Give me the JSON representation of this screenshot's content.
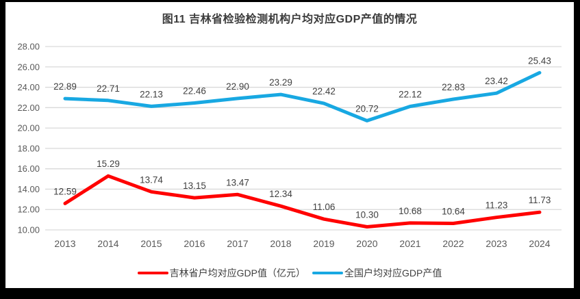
{
  "chart_data": {
    "type": "line",
    "title": "图11 吉林省检验检测机构户均对应GDP产值的情况",
    "categories": [
      "2013",
      "2014",
      "2015",
      "2016",
      "2017",
      "2018",
      "2019",
      "2020",
      "2021",
      "2022",
      "2023",
      "2024"
    ],
    "series": [
      {
        "name": "吉林省户均对应GDP值（亿元）",
        "color": "#ff0000",
        "values": [
          12.59,
          15.29,
          13.74,
          13.15,
          13.47,
          12.34,
          11.06,
          10.3,
          10.68,
          10.64,
          11.23,
          11.73
        ]
      },
      {
        "name": "全国户均对应GDP产值",
        "color": "#18a8e2",
        "values": [
          22.89,
          22.71,
          22.13,
          22.46,
          22.9,
          23.29,
          22.42,
          20.72,
          22.12,
          22.83,
          23.42,
          25.43
        ]
      }
    ],
    "ylim": [
      10,
      28
    ],
    "ytick_step": 2,
    "xlabel": "",
    "ylabel": "",
    "grid": "horizontal",
    "legend_position": "bottom",
    "data_labels": true,
    "colors": {
      "gridline": "#d9d9d9",
      "axis_label": "#595959",
      "data_label": "#404040",
      "title": "#3b3b3b",
      "frame_border": "#000000",
      "background": "#ffffff"
    }
  }
}
